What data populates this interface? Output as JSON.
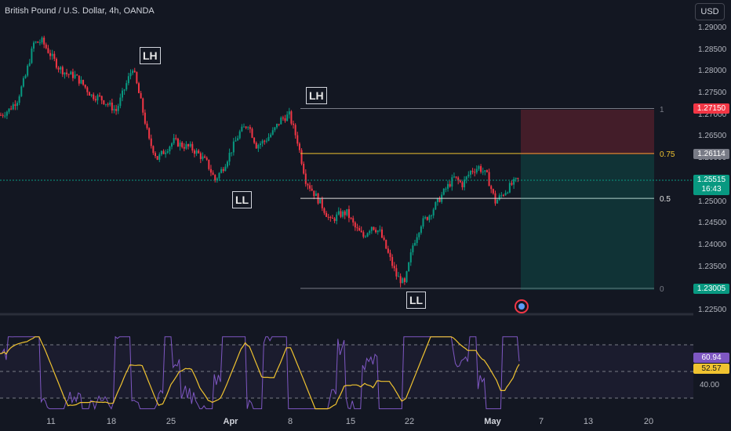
{
  "header": {
    "title": "British Pound / U.S. Dollar, 4h, OANDA",
    "currency_button": "USD"
  },
  "price_axis": {
    "ticks": [
      "1.29000",
      "1.28500",
      "1.28000",
      "1.27500",
      "1.27000",
      "1.26500",
      "1.26000",
      "1.25500",
      "1.25000",
      "1.24500",
      "1.24000",
      "1.23500",
      "1.23000",
      "1.22500"
    ]
  },
  "badges": {
    "stop": {
      "label": "1.27150",
      "color": "#f23645"
    },
    "fib075": {
      "label": "1.26114",
      "color": "#787b86"
    },
    "last_price": {
      "label": "1.25515",
      "countdown": "16:43",
      "color": "#089981"
    },
    "target": {
      "label": "1.23005",
      "color": "#089981"
    },
    "rsi": {
      "label": "60.94",
      "color": "#7e57c2"
    },
    "rsi_ma": {
      "label": "52.57",
      "color": "#f0c330"
    }
  },
  "annotations": [
    "LH",
    "LH",
    "LL",
    "LL"
  ],
  "fib_levels": [
    {
      "label": "1",
      "color": "#787b86"
    },
    {
      "label": "0.75",
      "color": "#f0c330"
    },
    {
      "label": "0.5",
      "color": "#e0e0e0"
    },
    {
      "label": "0",
      "color": "#787b86"
    }
  ],
  "rsi_axis": {
    "label": "40.00"
  },
  "time_axis": [
    "11",
    "18",
    "25",
    "Apr",
    "8",
    "15",
    "22",
    "May",
    "7",
    "13",
    "20"
  ],
  "chart_data": {
    "type": "candlestick",
    "title": "British Pound / U.S. Dollar, 4h, OANDA",
    "ylim": [
      1.2225,
      1.292
    ],
    "fib_retracement": {
      "1": 1.2715,
      "0.75": 1.26114,
      "0.5": 1.2508,
      "0": 1.23005
    },
    "swings": [
      {
        "label": "LH",
        "price": 1.281
      },
      {
        "label": "LL",
        "price": 1.254
      },
      {
        "label": "LH",
        "price": 1.27
      },
      {
        "label": "LL",
        "price": 1.23
      }
    ],
    "close_path": [
      1.27,
      1.2712,
      1.2735,
      1.279,
      1.2865,
      1.287,
      1.284,
      1.281,
      1.2795,
      1.279,
      1.277,
      1.2745,
      1.274,
      1.2725,
      1.271,
      1.276,
      1.281,
      1.273,
      1.264,
      1.26,
      1.262,
      1.264,
      1.263,
      1.2625,
      1.261,
      1.259,
      1.255,
      1.258,
      1.262,
      1.266,
      1.268,
      1.263,
      1.264,
      1.266,
      1.269,
      1.27,
      1.264,
      1.255,
      1.252,
      1.249,
      1.2455,
      1.247,
      1.2475,
      1.244,
      1.242,
      1.2445,
      1.243,
      1.238,
      1.233,
      1.231,
      1.24,
      1.245,
      1.247,
      1.25,
      1.253,
      1.2555,
      1.254,
      1.257,
      1.258,
      1.256,
      1.25,
      1.252,
      1.254,
      1.2555
    ],
    "rsi": {
      "last": 60.94,
      "ma_last": 52.57,
      "bands": [
        70,
        50,
        30
      ]
    }
  }
}
